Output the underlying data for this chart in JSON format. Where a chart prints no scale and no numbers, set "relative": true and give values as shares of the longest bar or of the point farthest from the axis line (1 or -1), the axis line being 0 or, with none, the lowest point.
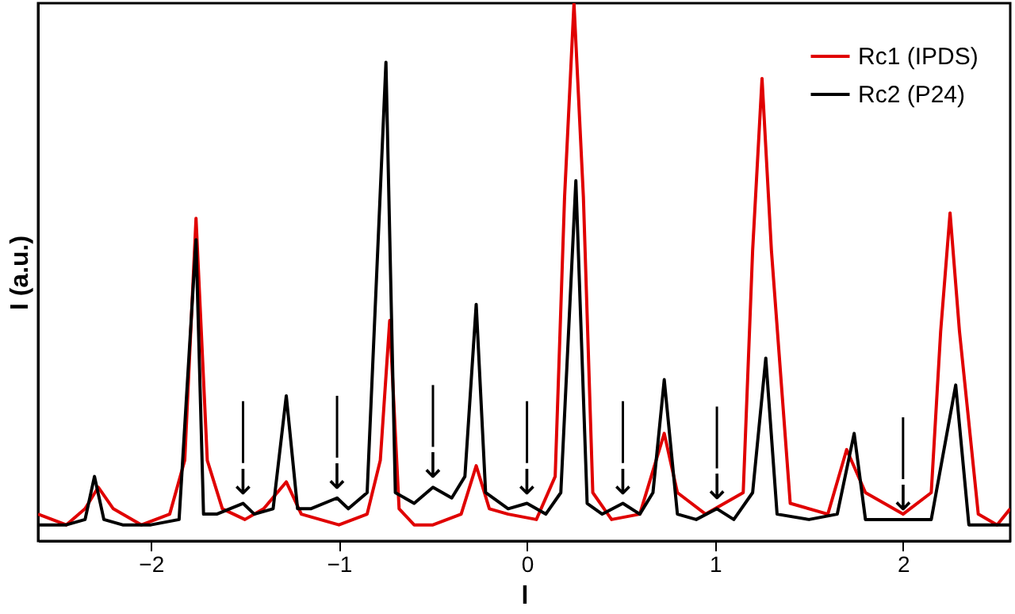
{
  "chart_data": {
    "type": "line",
    "xlabel": "l",
    "ylabel": "I (a.u.)",
    "relative": true,
    "xlim": [
      -2.6,
      2.57
    ],
    "xticks": [
      -2,
      -1,
      0,
      1,
      2
    ],
    "legend": "top right",
    "grid": false,
    "series": [
      {
        "name": "Rc1 (IPDS)",
        "color": "#e00000",
        "x": [
          -2.6,
          -2.45,
          -2.35,
          -2.28,
          -2.2,
          -2.05,
          -1.9,
          -1.82,
          -1.76,
          -1.7,
          -1.62,
          -1.5,
          -1.4,
          -1.28,
          -1.2,
          -1.0,
          -0.85,
          -0.78,
          -0.73,
          -0.68,
          -0.6,
          -0.5,
          -0.35,
          -0.27,
          -0.2,
          -0.1,
          0.05,
          0.15,
          0.2,
          0.25,
          0.3,
          0.35,
          0.45,
          0.6,
          0.73,
          0.8,
          0.95,
          1.15,
          1.2,
          1.25,
          1.3,
          1.4,
          1.6,
          1.7,
          1.8,
          2.0,
          2.15,
          2.2,
          2.25,
          2.3,
          2.4,
          2.5,
          2.57
        ],
        "values": [
          0.05,
          0.03,
          0.06,
          0.1,
          0.06,
          0.03,
          0.05,
          0.15,
          0.6,
          0.15,
          0.06,
          0.04,
          0.06,
          0.11,
          0.05,
          0.03,
          0.05,
          0.15,
          0.41,
          0.06,
          0.03,
          0.03,
          0.05,
          0.14,
          0.06,
          0.05,
          0.04,
          0.12,
          0.64,
          1.0,
          0.64,
          0.09,
          0.04,
          0.05,
          0.2,
          0.09,
          0.05,
          0.09,
          0.54,
          0.86,
          0.54,
          0.07,
          0.05,
          0.17,
          0.09,
          0.05,
          0.09,
          0.39,
          0.61,
          0.39,
          0.05,
          0.03,
          0.06
        ]
      },
      {
        "name": "Rc2 (P24)",
        "color": "#000000",
        "x": [
          -2.6,
          -2.45,
          -2.35,
          -2.3,
          -2.25,
          -2.15,
          -2.0,
          -1.85,
          -1.76,
          -1.72,
          -1.65,
          -1.51,
          -1.45,
          -1.35,
          -1.28,
          -1.22,
          -1.15,
          -1.01,
          -0.95,
          -0.85,
          -0.75,
          -0.7,
          -0.6,
          -0.5,
          -0.4,
          -0.33,
          -0.27,
          -0.22,
          -0.1,
          0.0,
          0.1,
          0.18,
          0.26,
          0.32,
          0.4,
          0.51,
          0.6,
          0.67,
          0.73,
          0.8,
          0.9,
          1.01,
          1.1,
          1.2,
          1.27,
          1.33,
          1.5,
          1.65,
          1.74,
          1.8,
          2.0,
          2.15,
          2.28,
          2.35,
          2.57
        ],
        "values": [
          0.03,
          0.03,
          0.04,
          0.12,
          0.04,
          0.03,
          0.03,
          0.04,
          0.56,
          0.05,
          0.05,
          0.07,
          0.05,
          0.06,
          0.27,
          0.06,
          0.06,
          0.08,
          0.06,
          0.09,
          0.89,
          0.09,
          0.07,
          0.1,
          0.08,
          0.12,
          0.44,
          0.09,
          0.06,
          0.07,
          0.05,
          0.09,
          0.67,
          0.07,
          0.05,
          0.07,
          0.05,
          0.09,
          0.3,
          0.05,
          0.04,
          0.06,
          0.04,
          0.09,
          0.34,
          0.05,
          0.04,
          0.05,
          0.2,
          0.04,
          0.04,
          0.04,
          0.29,
          0.03,
          0.03
        ]
      }
    ],
    "annotations": [
      {
        "text": "↓",
        "x": -1.51,
        "y": 0.07
      },
      {
        "text": "↓",
        "x": -1.01,
        "y": 0.08
      },
      {
        "text": "↓",
        "x": -0.5,
        "y": 0.1
      },
      {
        "text": "↓",
        "x": 0.0,
        "y": 0.07
      },
      {
        "text": "↓",
        "x": 0.51,
        "y": 0.07
      },
      {
        "text": "↓",
        "x": 1.01,
        "y": 0.06
      },
      {
        "text": "↓",
        "x": 2.0,
        "y": 0.04
      }
    ]
  }
}
